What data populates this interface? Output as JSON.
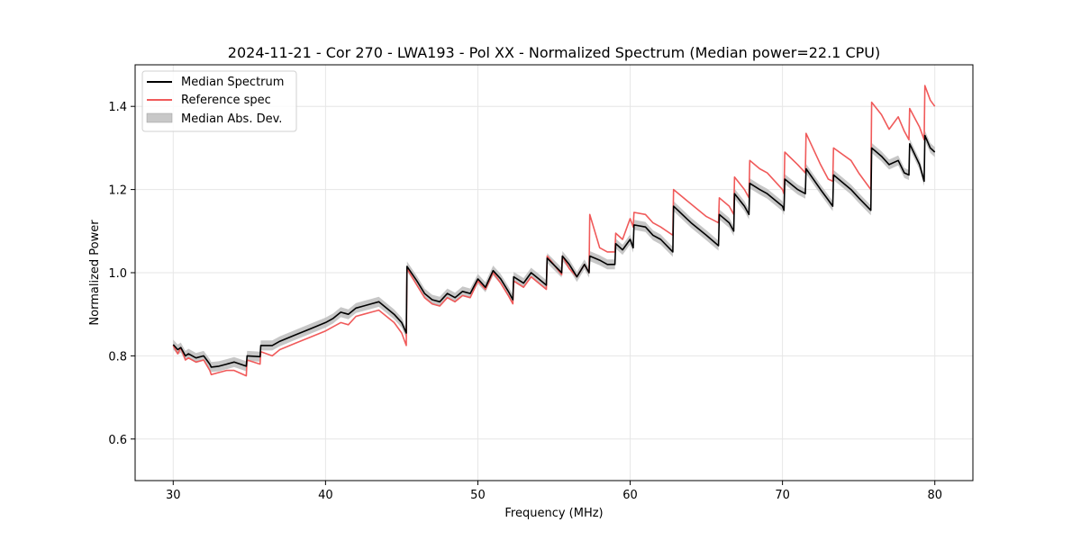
{
  "chart_data": {
    "type": "line",
    "title": "2024-11-21 - Cor 270 - LWA193 - Pol XX - Normalized Spectrum (Median power=22.1 CPU)",
    "xlabel": "Frequency (MHz)",
    "ylabel": "Normalized Power",
    "xlim": [
      27.5,
      82.5
    ],
    "ylim": [
      0.5,
      1.5
    ],
    "xticks": [
      30,
      40,
      50,
      60,
      70,
      80
    ],
    "xtick_labels": [
      "30",
      "40",
      "50",
      "60",
      "70",
      "80"
    ],
    "yticks": [
      0.6,
      0.8,
      1.0,
      1.2,
      1.4
    ],
    "ytick_labels": [
      "0.6",
      "0.8",
      "1.0",
      "1.2",
      "1.4"
    ],
    "grid": true,
    "legend_position": "top-left",
    "mad_halfwidth": 0.012,
    "colors": {
      "median": "#000000",
      "reference": "#f05a5a",
      "mad": "#bdbdbd"
    },
    "legend": [
      {
        "label": "Median Spectrum",
        "kind": "line",
        "color": "#000000"
      },
      {
        "label": "Reference spec",
        "kind": "line",
        "color": "#f05a5a"
      },
      {
        "label": "Median Abs. Dev.",
        "kind": "patch",
        "color": "#c8c8c8"
      }
    ],
    "series": [
      {
        "name": "Median Spectrum",
        "x": [
          30.0,
          30.3,
          30.5,
          30.8,
          31.0,
          31.5,
          32.0,
          32.4,
          32.5,
          33.0,
          33.5,
          34.0,
          34.8,
          34.85,
          35.7,
          35.75,
          36.5,
          37.0,
          38.0,
          39.0,
          40.0,
          40.5,
          41.0,
          41.5,
          42.0,
          42.5,
          43.0,
          43.5,
          44.0,
          44.5,
          45.0,
          45.3,
          45.35,
          46.0,
          46.5,
          47.0,
          47.5,
          48.0,
          48.5,
          49.0,
          49.5,
          50.0,
          50.5,
          51.0,
          51.5,
          52.0,
          52.3,
          52.35,
          53.0,
          53.5,
          54.0,
          54.5,
          54.55,
          55.5,
          55.55,
          56.0,
          56.5,
          57.0,
          57.3,
          57.35,
          58.0,
          58.5,
          59.0,
          59.05,
          59.5,
          60.0,
          60.2,
          60.25,
          61.0,
          61.5,
          62.0,
          62.8,
          62.85,
          64.0,
          65.0,
          65.8,
          65.85,
          66.5,
          66.8,
          66.85,
          67.5,
          67.8,
          67.85,
          68.5,
          69.0,
          70.0,
          70.1,
          70.15,
          71.0,
          71.5,
          71.55,
          72.5,
          73.0,
          73.3,
          73.35,
          74.5,
          75.0,
          75.8,
          75.85,
          76.5,
          77.0,
          77.6,
          78.0,
          78.3,
          78.35,
          79.0,
          79.3,
          79.35,
          79.7,
          80.0
        ],
        "y": [
          0.827,
          0.815,
          0.82,
          0.8,
          0.805,
          0.795,
          0.8,
          0.78,
          0.773,
          0.775,
          0.78,
          0.785,
          0.775,
          0.8,
          0.798,
          0.825,
          0.825,
          0.835,
          0.85,
          0.865,
          0.88,
          0.89,
          0.905,
          0.9,
          0.915,
          0.92,
          0.925,
          0.93,
          0.915,
          0.9,
          0.88,
          0.855,
          1.015,
          0.98,
          0.95,
          0.935,
          0.93,
          0.95,
          0.94,
          0.955,
          0.95,
          0.985,
          0.965,
          1.005,
          0.985,
          0.955,
          0.935,
          0.99,
          0.975,
          1.0,
          0.985,
          0.97,
          1.035,
          1.0,
          1.04,
          1.02,
          0.99,
          1.02,
          1.0,
          1.04,
          1.03,
          1.02,
          1.02,
          1.07,
          1.055,
          1.08,
          1.06,
          1.115,
          1.11,
          1.09,
          1.08,
          1.05,
          1.16,
          1.12,
          1.09,
          1.065,
          1.14,
          1.12,
          1.1,
          1.19,
          1.16,
          1.14,
          1.215,
          1.2,
          1.19,
          1.16,
          1.15,
          1.225,
          1.2,
          1.19,
          1.25,
          1.2,
          1.175,
          1.16,
          1.235,
          1.2,
          1.18,
          1.15,
          1.3,
          1.28,
          1.26,
          1.27,
          1.24,
          1.235,
          1.31,
          1.26,
          1.22,
          1.33,
          1.3,
          1.29
        ]
      },
      {
        "name": "Reference spec",
        "x": [
          30.0,
          30.3,
          30.5,
          30.8,
          31.0,
          31.5,
          32.0,
          32.4,
          32.5,
          33.0,
          33.5,
          34.0,
          34.8,
          34.85,
          35.7,
          35.75,
          36.5,
          37.0,
          38.0,
          39.0,
          40.0,
          40.5,
          41.0,
          41.5,
          42.0,
          42.5,
          43.0,
          43.5,
          44.0,
          44.5,
          45.0,
          45.3,
          45.35,
          46.0,
          46.5,
          47.0,
          47.5,
          48.0,
          48.5,
          49.0,
          49.5,
          50.0,
          50.5,
          51.0,
          51.5,
          52.0,
          52.3,
          52.35,
          53.0,
          53.5,
          54.0,
          54.5,
          54.55,
          55.5,
          55.55,
          56.0,
          56.5,
          57.0,
          57.3,
          57.35,
          58.0,
          58.5,
          59.0,
          59.05,
          59.5,
          60.0,
          60.2,
          60.25,
          61.0,
          61.5,
          62.0,
          62.8,
          62.85,
          64.0,
          65.0,
          65.8,
          65.85,
          66.5,
          66.8,
          66.85,
          67.5,
          67.8,
          67.85,
          68.5,
          69.0,
          70.0,
          70.1,
          70.15,
          71.0,
          71.5,
          71.55,
          72.5,
          73.0,
          73.3,
          73.35,
          74.5,
          75.0,
          75.8,
          75.85,
          76.5,
          77.0,
          77.6,
          78.0,
          78.3,
          78.35,
          79.0,
          79.3,
          79.35,
          79.7,
          80.0
        ],
        "y": [
          0.825,
          0.805,
          0.82,
          0.79,
          0.795,
          0.785,
          0.79,
          0.765,
          0.755,
          0.76,
          0.765,
          0.765,
          0.752,
          0.79,
          0.78,
          0.81,
          0.8,
          0.815,
          0.83,
          0.845,
          0.86,
          0.87,
          0.88,
          0.875,
          0.895,
          0.9,
          0.905,
          0.91,
          0.895,
          0.88,
          0.855,
          0.825,
          1.01,
          0.97,
          0.94,
          0.925,
          0.92,
          0.94,
          0.93,
          0.945,
          0.94,
          0.98,
          0.96,
          1.0,
          0.975,
          0.945,
          0.925,
          0.98,
          0.965,
          0.99,
          0.975,
          0.96,
          1.04,
          0.995,
          1.04,
          1.01,
          0.99,
          1.02,
          1.0,
          1.14,
          1.06,
          1.05,
          1.05,
          1.095,
          1.08,
          1.13,
          1.11,
          1.145,
          1.14,
          1.12,
          1.11,
          1.09,
          1.2,
          1.165,
          1.135,
          1.12,
          1.18,
          1.16,
          1.14,
          1.23,
          1.2,
          1.18,
          1.27,
          1.25,
          1.24,
          1.2,
          1.19,
          1.29,
          1.26,
          1.24,
          1.335,
          1.26,
          1.225,
          1.22,
          1.3,
          1.27,
          1.24,
          1.2,
          1.41,
          1.38,
          1.345,
          1.375,
          1.34,
          1.32,
          1.395,
          1.35,
          1.32,
          1.45,
          1.415,
          1.4
        ]
      }
    ]
  }
}
